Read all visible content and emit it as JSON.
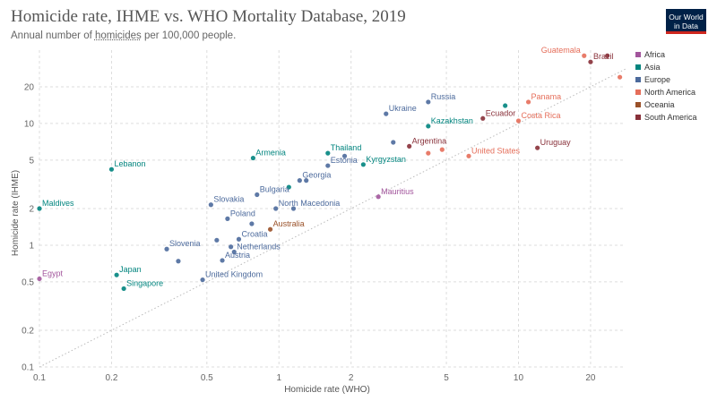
{
  "header": {
    "title": "Homicide rate, IHME vs. WHO Mortality Database, 2019",
    "subtitle_prefix": "Annual number of ",
    "subtitle_link": "homicides",
    "subtitle_suffix": " per 100,000 people.",
    "logo_line1": "Our World",
    "logo_line2": "in Data"
  },
  "colors": {
    "Africa": "#a2559c",
    "Asia": "#00847e",
    "Europe": "#4c6a9c",
    "North America": "#e56e5a",
    "Oceania": "#9a5129",
    "South America": "#883039"
  },
  "chart_data": {
    "type": "scatter",
    "title": "Homicide rate, IHME vs. WHO Mortality Database, 2019",
    "subtitle": "Annual number of homicides per 100,000 people.",
    "xlabel": "Homicide rate (WHO)",
    "ylabel": "Homicide rate (IHME)",
    "xscale": "log",
    "yscale": "log",
    "xlim": [
      0.1,
      28
    ],
    "ylim": [
      0.1,
      40
    ],
    "x_ticks": [
      0.1,
      0.2,
      0.5,
      1,
      2,
      5,
      10,
      20
    ],
    "y_ticks": [
      0.1,
      0.2,
      0.5,
      1,
      2,
      5,
      10,
      20
    ],
    "x_tick_labels": [
      "0.1",
      "0.2",
      "0.5",
      "1",
      "2",
      "5",
      "10",
      "20"
    ],
    "y_tick_labels": [
      "0.1",
      "0.2",
      "0.5",
      "1",
      "2",
      "5",
      "10",
      "20"
    ],
    "grid": true,
    "reference_line": "y = x",
    "legend_position": "right",
    "legend": [
      "Africa",
      "Asia",
      "Europe",
      "North America",
      "Oceania",
      "South America"
    ],
    "points": [
      {
        "label": "Egypt",
        "x": 0.1,
        "y": 0.53,
        "group": "Africa"
      },
      {
        "label": "Maldives",
        "x": 0.1,
        "y": 2.0,
        "group": "Asia"
      },
      {
        "label": "Lebanon",
        "x": 0.2,
        "y": 4.2,
        "group": "Asia"
      },
      {
        "label": "Japan",
        "x": 0.21,
        "y": 0.57,
        "group": "Asia"
      },
      {
        "label": "Singapore",
        "x": 0.225,
        "y": 0.44,
        "group": "Asia"
      },
      {
        "label": "Slovenia",
        "x": 0.34,
        "y": 0.93,
        "group": "Europe"
      },
      {
        "label": "",
        "x": 0.38,
        "y": 0.74,
        "group": "Europe"
      },
      {
        "label": "Slovakia",
        "x": 0.52,
        "y": 2.15,
        "group": "Europe"
      },
      {
        "label": "United Kingdom",
        "x": 0.48,
        "y": 0.52,
        "group": "Europe"
      },
      {
        "label": "",
        "x": 0.55,
        "y": 1.1,
        "group": "Europe"
      },
      {
        "label": "Austria",
        "x": 0.58,
        "y": 0.75,
        "group": "Europe"
      },
      {
        "label": "Poland",
        "x": 0.61,
        "y": 1.65,
        "group": "Europe"
      },
      {
        "label": "Croatia",
        "x": 0.68,
        "y": 1.12,
        "group": "Europe"
      },
      {
        "label": "",
        "x": 0.63,
        "y": 0.97,
        "group": "Europe"
      },
      {
        "label": "Netherlands",
        "x": 0.65,
        "y": 0.88,
        "group": "Europe"
      },
      {
        "label": "",
        "x": 0.77,
        "y": 1.5,
        "group": "Europe"
      },
      {
        "label": "Bulgaria",
        "x": 0.81,
        "y": 2.6,
        "group": "Europe"
      },
      {
        "label": "North Macedonia",
        "x": 0.97,
        "y": 2.0,
        "group": "Europe"
      },
      {
        "label": "",
        "x": 1.15,
        "y": 2.0,
        "group": "Europe"
      },
      {
        "label": "Australia",
        "x": 0.92,
        "y": 1.35,
        "group": "Oceania"
      },
      {
        "label": "Armenia",
        "x": 0.78,
        "y": 5.2,
        "group": "Asia"
      },
      {
        "label": "",
        "x": 1.1,
        "y": 3.0,
        "group": "Asia"
      },
      {
        "label": "Georgia",
        "x": 1.22,
        "y": 3.4,
        "group": "Europe"
      },
      {
        "label": "",
        "x": 1.3,
        "y": 3.4,
        "group": "Europe"
      },
      {
        "label": "Estonia",
        "x": 1.6,
        "y": 4.5,
        "group": "Europe"
      },
      {
        "label": "",
        "x": 1.88,
        "y": 5.4,
        "group": "Europe"
      },
      {
        "label": "Thailand",
        "x": 1.6,
        "y": 5.7,
        "group": "Asia"
      },
      {
        "label": "Kyrgyzstan",
        "x": 2.25,
        "y": 4.6,
        "group": "Asia"
      },
      {
        "label": "Mauritius",
        "x": 2.6,
        "y": 2.5,
        "group": "Africa"
      },
      {
        "label": "Ukraine",
        "x": 2.8,
        "y": 12.0,
        "group": "Europe"
      },
      {
        "label": "",
        "x": 3.0,
        "y": 7.0,
        "group": "Europe"
      },
      {
        "label": "Russia",
        "x": 4.2,
        "y": 15.0,
        "group": "Europe"
      },
      {
        "label": "Kazakhstan",
        "x": 4.2,
        "y": 9.5,
        "group": "Asia"
      },
      {
        "label": "Argentina",
        "x": 3.5,
        "y": 6.5,
        "group": "South America"
      },
      {
        "label": "",
        "x": 4.2,
        "y": 5.7,
        "group": "North America"
      },
      {
        "label": "",
        "x": 4.8,
        "y": 6.1,
        "group": "North America"
      },
      {
        "label": "United States",
        "x": 6.2,
        "y": 5.4,
        "group": "North America"
      },
      {
        "label": "Ecuador",
        "x": 7.1,
        "y": 11.0,
        "group": "South America"
      },
      {
        "label": "",
        "x": 8.8,
        "y": 14.0,
        "group": "Asia"
      },
      {
        "label": "Panama",
        "x": 11.0,
        "y": 15.0,
        "group": "North America"
      },
      {
        "label": "Costa Rica",
        "x": 10.0,
        "y": 10.5,
        "group": "North America"
      },
      {
        "label": "Uruguay",
        "x": 12.0,
        "y": 6.3,
        "group": "South America"
      },
      {
        "label": "Guatemala",
        "x": 18.8,
        "y": 36.0,
        "group": "North America"
      },
      {
        "label": "Brazil",
        "x": 20.0,
        "y": 32.0,
        "group": "South America"
      },
      {
        "label": "",
        "x": 23.5,
        "y": 36.0,
        "group": "South America"
      },
      {
        "label": "",
        "x": 26.5,
        "y": 24.0,
        "group": "North America"
      }
    ]
  }
}
